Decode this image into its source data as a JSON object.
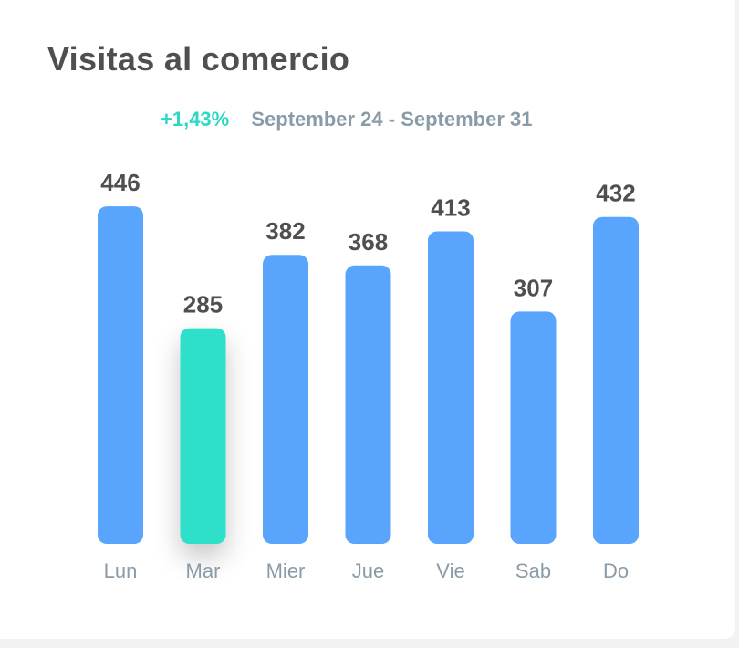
{
  "card": {
    "title": "Visitas al comercio",
    "change": "+1,43%",
    "date_range": "September 24 - September 31"
  },
  "colors": {
    "bar_default": "#59a5fd",
    "bar_highlight": "#2ddfca",
    "change_text": "#2bd8c4",
    "date_text": "#8a9ba8",
    "value_label": "#4f4f4f",
    "category_label": "#8a9ba8"
  },
  "chart_data": {
    "type": "bar",
    "categories": [
      "Lun",
      "Mar",
      "Mier",
      "Jue",
      "Vie",
      "Sab",
      "Do"
    ],
    "values": [
      446,
      285,
      382,
      368,
      413,
      307,
      432
    ],
    "highlight_index": 1,
    "data_labels": true,
    "grid": false,
    "legend": "none"
  }
}
